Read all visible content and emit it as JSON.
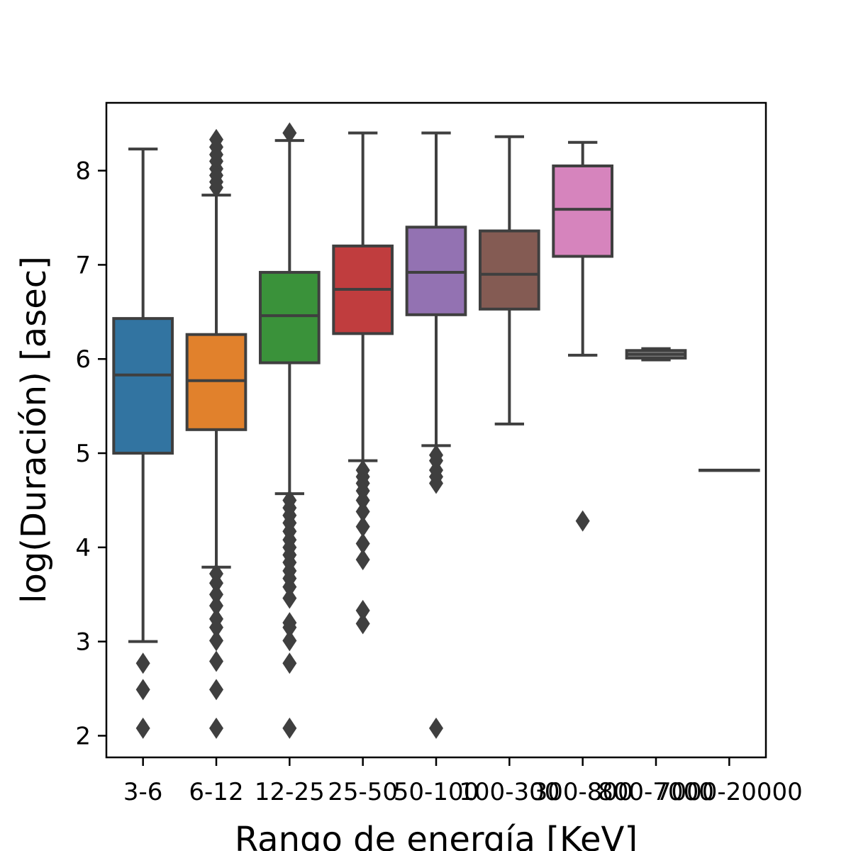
{
  "chart_data": {
    "type": "box",
    "title": "",
    "xlabel": "Rango de energía [KeV]",
    "ylabel": "log(Duración) [asec]",
    "ylim": [
      1.77,
      8.72
    ],
    "yticks": [
      2,
      3,
      4,
      5,
      6,
      7,
      8
    ],
    "grid": false,
    "legend": "none",
    "categories": [
      "3-6",
      "6-12",
      "12-25",
      "25-50",
      "50-100",
      "100-300",
      "300-800",
      "800-7000",
      "7000-20000"
    ],
    "colors": [
      "#3274a1",
      "#e1812c",
      "#3a923a",
      "#c03d3e",
      "#9372b2",
      "#845b53",
      "#d684bd",
      "#7f7f7f",
      "#a9aa35"
    ],
    "boxes": [
      {
        "category": "3-6",
        "whisker_low": 3.0,
        "q1": 5.0,
        "median": 5.83,
        "q3": 6.43,
        "whisker_high": 8.23,
        "outliers": [
          2.77,
          2.49,
          2.08
        ]
      },
      {
        "category": "6-12",
        "whisker_low": 3.79,
        "q1": 5.25,
        "median": 5.77,
        "q3": 6.26,
        "whisker_high": 7.74,
        "outliers": [
          8.33,
          8.25,
          8.17,
          8.1,
          8.02,
          7.95,
          7.88,
          7.82,
          3.72,
          3.62,
          3.5,
          3.38,
          3.24,
          3.15,
          3.01,
          2.79,
          2.49,
          2.08
        ]
      },
      {
        "category": "12-25",
        "whisker_low": 4.57,
        "q1": 5.96,
        "median": 6.46,
        "q3": 6.92,
        "whisker_high": 8.32,
        "outliers": [
          8.4,
          4.5,
          4.42,
          4.34,
          4.26,
          4.17,
          4.08,
          4.0,
          3.92,
          3.84,
          3.75,
          3.67,
          3.58,
          3.46,
          3.2,
          3.15,
          3.01,
          2.77,
          2.08
        ]
      },
      {
        "category": "25-50",
        "whisker_low": 4.92,
        "q1": 6.27,
        "median": 6.74,
        "q3": 7.2,
        "whisker_high": 8.4,
        "outliers": [
          4.82,
          4.75,
          4.68,
          4.6,
          4.5,
          4.38,
          4.22,
          4.04,
          3.87,
          3.33,
          3.19
        ]
      },
      {
        "category": "50-100",
        "whisker_low": 5.08,
        "q1": 6.47,
        "median": 6.92,
        "q3": 7.4,
        "whisker_high": 8.4,
        "outliers": [
          4.98,
          4.92,
          4.82,
          4.75,
          4.68,
          2.08
        ]
      },
      {
        "category": "100-300",
        "whisker_low": 5.31,
        "q1": 6.53,
        "median": 6.9,
        "q3": 7.36,
        "whisker_high": 8.36,
        "outliers": []
      },
      {
        "category": "300-800",
        "whisker_low": 6.04,
        "q1": 7.09,
        "median": 7.59,
        "q3": 8.05,
        "whisker_high": 8.3,
        "outliers": [
          4.28
        ]
      },
      {
        "category": "800-7000",
        "whisker_low": 5.99,
        "q1": 6.01,
        "median": 6.05,
        "q3": 6.09,
        "whisker_high": 6.11,
        "outliers": []
      },
      {
        "category": "7000-20000",
        "whisker_low": 4.82,
        "q1": 4.82,
        "median": 4.82,
        "q3": 4.82,
        "whisker_high": 4.82,
        "outliers": []
      }
    ]
  }
}
